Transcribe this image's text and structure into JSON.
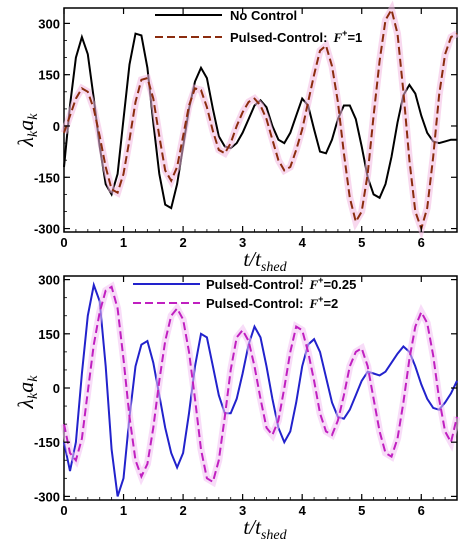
{
  "chart_data": [
    {
      "type": "line",
      "title": "",
      "xlabel": "t/t",
      "xlabel_sub": "shed",
      "ylabel": "λ",
      "ylabel_parts": [
        "λ",
        "k",
        "a",
        "k"
      ],
      "xlim": [
        0,
        6.6
      ],
      "ylim": [
        -310,
        345
      ],
      "xticks": [
        0,
        1,
        2,
        3,
        4,
        5,
        6
      ],
      "yticks": [
        -300,
        -150,
        0,
        150,
        300
      ],
      "legend_position": "top-center",
      "series": [
        {
          "name": "No Control",
          "legend_label": "No Control",
          "color": "#000000",
          "dash": "solid",
          "x": [
            0,
            0.1,
            0.2,
            0.3,
            0.4,
            0.5,
            0.6,
            0.7,
            0.8,
            0.9,
            1.0,
            1.1,
            1.2,
            1.3,
            1.4,
            1.5,
            1.6,
            1.7,
            1.8,
            1.9,
            2.0,
            2.1,
            2.2,
            2.3,
            2.4,
            2.5,
            2.6,
            2.7,
            2.8,
            2.9,
            3.0,
            3.1,
            3.2,
            3.3,
            3.4,
            3.5,
            3.6,
            3.7,
            3.8,
            3.9,
            4.0,
            4.1,
            4.2,
            4.3,
            4.4,
            4.5,
            4.6,
            4.7,
            4.8,
            4.9,
            5.0,
            5.1,
            5.2,
            5.3,
            5.4,
            5.5,
            5.6,
            5.7,
            5.8,
            5.9,
            6.0,
            6.1,
            6.2,
            6.3,
            6.4,
            6.5,
            6.6
          ],
          "y": [
            -120,
            60,
            200,
            260,
            210,
            80,
            -60,
            -170,
            -200,
            -140,
            20,
            180,
            270,
            265,
            170,
            10,
            -140,
            -230,
            -240,
            -170,
            -60,
            50,
            130,
            170,
            140,
            50,
            -30,
            -60,
            -65,
            -50,
            -20,
            20,
            60,
            75,
            55,
            0,
            -40,
            -50,
            -20,
            30,
            80,
            60,
            -10,
            -75,
            -80,
            -40,
            20,
            60,
            60,
            20,
            -60,
            -150,
            -200,
            -210,
            -170,
            -90,
            10,
            90,
            120,
            95,
            30,
            -20,
            -45,
            -50,
            -45,
            -40,
            -40
          ]
        },
        {
          "name": "Pulsed-Control",
          "legend_label": "Pulsed-Control:",
          "legend_param": "F",
          "legend_param_sup": "+",
          "legend_param_value": "=1",
          "color": "#8B2C0E",
          "dash": "dashed",
          "x": [
            0,
            0.1,
            0.2,
            0.3,
            0.4,
            0.5,
            0.6,
            0.7,
            0.8,
            0.9,
            1.0,
            1.1,
            1.2,
            1.3,
            1.4,
            1.5,
            1.6,
            1.7,
            1.8,
            1.9,
            2.0,
            2.1,
            2.2,
            2.3,
            2.4,
            2.5,
            2.6,
            2.7,
            2.8,
            2.9,
            3.0,
            3.1,
            3.2,
            3.3,
            3.4,
            3.5,
            3.6,
            3.7,
            3.8,
            3.9,
            4.0,
            4.1,
            4.2,
            4.3,
            4.4,
            4.5,
            4.6,
            4.7,
            4.8,
            4.9,
            5.0,
            5.1,
            5.2,
            5.3,
            5.4,
            5.5,
            5.6,
            5.7,
            5.8,
            5.9,
            6.0,
            6.1,
            6.2,
            6.3,
            6.4,
            6.5,
            6.6
          ],
          "y": [
            -20,
            30,
            80,
            110,
            100,
            50,
            -30,
            -120,
            -185,
            -195,
            -140,
            -40,
            70,
            135,
            140,
            80,
            -30,
            -130,
            -160,
            -120,
            -30,
            60,
            110,
            105,
            55,
            -15,
            -70,
            -80,
            -50,
            0,
            40,
            70,
            80,
            60,
            20,
            -40,
            -100,
            -130,
            -120,
            -70,
            -10,
            70,
            150,
            220,
            235,
            175,
            70,
            -80,
            -210,
            -280,
            -250,
            -140,
            30,
            190,
            310,
            340,
            270,
            100,
            -100,
            -250,
            -300,
            -240,
            -90,
            90,
            210,
            260,
            270
          ]
        }
      ]
    },
    {
      "type": "line",
      "title": "",
      "xlabel": "t/t",
      "xlabel_sub": "shed",
      "ylabel": "λ",
      "ylabel_parts": [
        "λ",
        "k",
        "a",
        "k"
      ],
      "xlim": [
        0,
        6.6
      ],
      "ylim": [
        -310,
        310
      ],
      "xticks": [
        0,
        1,
        2,
        3,
        4,
        5,
        6
      ],
      "yticks": [
        -300,
        -150,
        0,
        150,
        300
      ],
      "legend_position": "top-center",
      "series": [
        {
          "name": "Pulsed-Control",
          "legend_label": "Pulsed-Control:",
          "legend_param": "F",
          "legend_param_sup": "+",
          "legend_param_value": "=0.25",
          "color": "#2222CC",
          "dash": "solid",
          "x": [
            0,
            0.1,
            0.2,
            0.3,
            0.4,
            0.5,
            0.6,
            0.7,
            0.8,
            0.9,
            1.0,
            1.1,
            1.2,
            1.3,
            1.4,
            1.5,
            1.6,
            1.7,
            1.8,
            1.9,
            2.0,
            2.1,
            2.2,
            2.3,
            2.4,
            2.5,
            2.6,
            2.7,
            2.8,
            2.9,
            3.0,
            3.1,
            3.2,
            3.3,
            3.4,
            3.5,
            3.6,
            3.7,
            3.8,
            3.9,
            4.0,
            4.1,
            4.2,
            4.3,
            4.4,
            4.5,
            4.6,
            4.7,
            4.8,
            4.9,
            5.0,
            5.1,
            5.2,
            5.3,
            5.4,
            5.5,
            5.6,
            5.7,
            5.8,
            5.9,
            6.0,
            6.1,
            6.2,
            6.3,
            6.4,
            6.5,
            6.6
          ],
          "y": [
            -150,
            -230,
            -150,
            40,
            200,
            285,
            240,
            60,
            -170,
            -300,
            -250,
            -80,
            60,
            120,
            130,
            70,
            -20,
            -110,
            -180,
            -220,
            -180,
            -70,
            60,
            150,
            140,
            60,
            -20,
            -70,
            -70,
            -30,
            40,
            120,
            170,
            140,
            60,
            -30,
            -110,
            -150,
            -120,
            -40,
            60,
            120,
            135,
            100,
            30,
            -40,
            -80,
            -85,
            -60,
            -20,
            20,
            45,
            40,
            35,
            45,
            70,
            95,
            115,
            100,
            60,
            10,
            -30,
            -55,
            -60,
            -40,
            -15,
            20
          ]
        },
        {
          "name": "Pulsed-Control",
          "legend_label": "Pulsed-Control:",
          "legend_param": "F",
          "legend_param_sup": "+",
          "legend_param_value": "=2",
          "color": "#C020C0",
          "dash": "dashed",
          "x": [
            0,
            0.1,
            0.2,
            0.3,
            0.4,
            0.5,
            0.6,
            0.7,
            0.8,
            0.9,
            1.0,
            1.1,
            1.2,
            1.3,
            1.4,
            1.5,
            1.6,
            1.7,
            1.8,
            1.9,
            2.0,
            2.1,
            2.2,
            2.3,
            2.4,
            2.5,
            2.6,
            2.7,
            2.8,
            2.9,
            3.0,
            3.1,
            3.2,
            3.3,
            3.4,
            3.5,
            3.6,
            3.7,
            3.8,
            3.9,
            4.0,
            4.1,
            4.2,
            4.3,
            4.4,
            4.5,
            4.6,
            4.7,
            4.8,
            4.9,
            5.0,
            5.1,
            5.2,
            5.3,
            5.4,
            5.5,
            5.6,
            5.7,
            5.8,
            5.9,
            6.0,
            6.1,
            6.2,
            6.3,
            6.4,
            6.5,
            6.6
          ],
          "y": [
            -100,
            -180,
            -200,
            -140,
            -10,
            120,
            210,
            270,
            280,
            220,
            80,
            -80,
            -200,
            -245,
            -210,
            -110,
            20,
            130,
            200,
            220,
            190,
            100,
            -30,
            -170,
            -250,
            -260,
            -200,
            -80,
            50,
            140,
            160,
            130,
            60,
            -30,
            -110,
            -130,
            -90,
            0,
            100,
            170,
            160,
            100,
            20,
            -70,
            -120,
            -130,
            -90,
            -20,
            60,
            100,
            110,
            60,
            -30,
            -120,
            -180,
            -190,
            -140,
            -40,
            80,
            170,
            210,
            180,
            90,
            -30,
            -120,
            -150,
            -80
          ]
        }
      ]
    }
  ]
}
